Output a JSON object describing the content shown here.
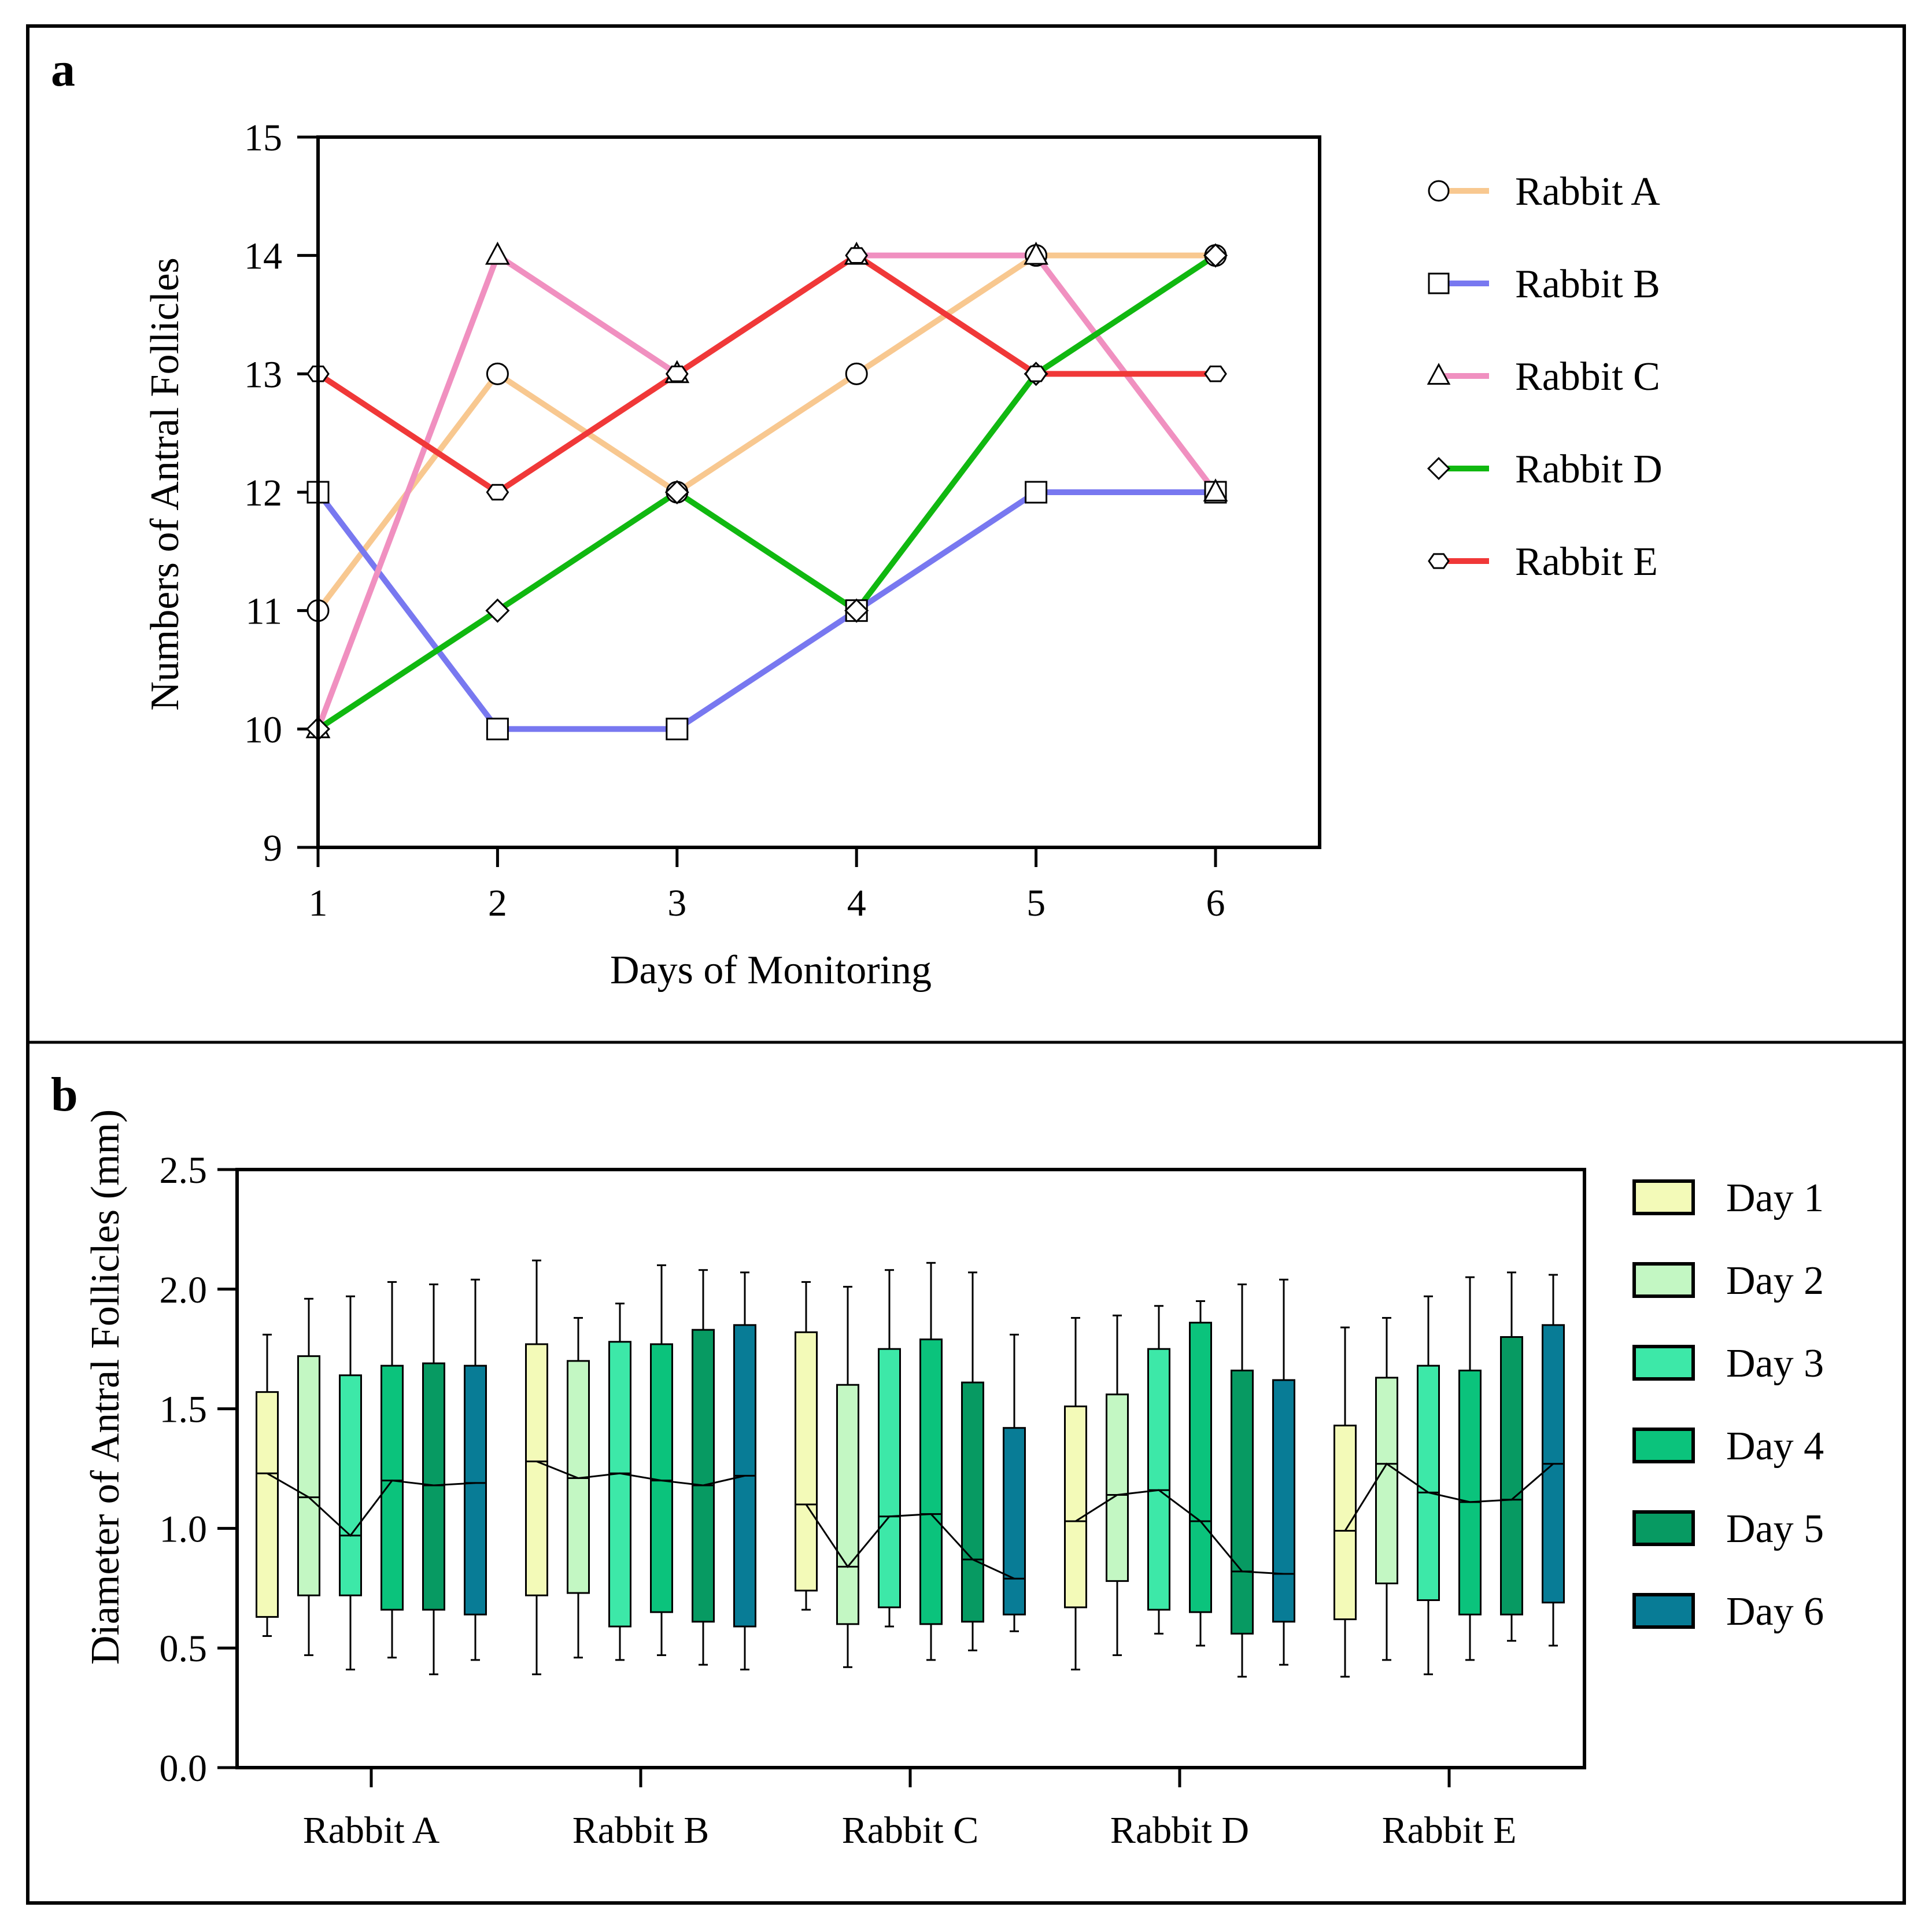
{
  "chart_data": [
    {
      "panel_label": "a",
      "type": "line",
      "title": "",
      "xlabel": "Days of Monitoring",
      "ylabel": "Numbers of Antral  Follicles",
      "x": [
        1,
        2,
        3,
        4,
        5,
        6
      ],
      "xlim": [
        1,
        6
      ],
      "ylim": [
        9,
        15
      ],
      "yticks": [
        9,
        10,
        11,
        12,
        13,
        14,
        15
      ],
      "grid": false,
      "legend_position": "right",
      "series": [
        {
          "name": "Rabbit A",
          "marker": "circle",
          "color": "#F8C890",
          "values": [
            11,
            13,
            12,
            13,
            14,
            14
          ]
        },
        {
          "name": "Rabbit B",
          "marker": "square",
          "color": "#7878F0",
          "values": [
            12,
            10,
            10,
            11,
            12,
            12
          ]
        },
        {
          "name": "Rabbit C",
          "marker": "triangle",
          "color": "#F090C0",
          "values": [
            10,
            14,
            13,
            14,
            14,
            12
          ]
        },
        {
          "name": "Rabbit D",
          "marker": "diamond",
          "color": "#10B810",
          "values": [
            10,
            11,
            12,
            11,
            13,
            14
          ]
        },
        {
          "name": "Rabbit E",
          "marker": "hexagon",
          "color": "#F03838",
          "values": [
            13,
            12,
            13,
            14,
            13,
            13
          ]
        }
      ]
    },
    {
      "panel_label": "b",
      "type": "box",
      "title": "",
      "xlabel": "",
      "ylabel": "Diameter of  Antral Follicles (mm)",
      "categories": [
        "Rabbit A",
        "Rabbit B",
        "Rabbit C",
        "Rabbit D",
        "Rabbit E"
      ],
      "ylim": [
        0,
        2.5
      ],
      "yticks": [
        "0.0",
        "0.5",
        "1.0",
        "1.5",
        "2.0",
        "2.5"
      ],
      "grid": false,
      "legend_position": "right",
      "series": [
        {
          "name": "Day 1",
          "color": "#F3FAB8",
          "boxes": [
            {
              "min": 0.55,
              "q1": 0.63,
              "median": 1.23,
              "q3": 1.57,
              "max": 1.81
            },
            {
              "min": 0.39,
              "q1": 0.72,
              "median": 1.28,
              "q3": 1.77,
              "max": 2.12
            },
            {
              "min": 0.66,
              "q1": 0.74,
              "median": 1.1,
              "q3": 1.82,
              "max": 2.03
            },
            {
              "min": 0.41,
              "q1": 0.67,
              "median": 1.03,
              "q3": 1.51,
              "max": 1.88
            },
            {
              "min": 0.38,
              "q1": 0.62,
              "median": 0.99,
              "q3": 1.43,
              "max": 1.84
            }
          ]
        },
        {
          "name": "Day 2",
          "color": "#C3F7C3",
          "boxes": [
            {
              "min": 0.47,
              "q1": 0.72,
              "median": 1.13,
              "q3": 1.72,
              "max": 1.96
            },
            {
              "min": 0.46,
              "q1": 0.73,
              "median": 1.21,
              "q3": 1.7,
              "max": 1.88
            },
            {
              "min": 0.42,
              "q1": 0.6,
              "median": 0.84,
              "q3": 1.6,
              "max": 2.01
            },
            {
              "min": 0.47,
              "q1": 0.78,
              "median": 1.14,
              "q3": 1.56,
              "max": 1.89
            },
            {
              "min": 0.45,
              "q1": 0.77,
              "median": 1.27,
              "q3": 1.63,
              "max": 1.88
            }
          ]
        },
        {
          "name": "Day 3",
          "color": "#3DE8A8",
          "boxes": [
            {
              "min": 0.41,
              "q1": 0.72,
              "median": 0.97,
              "q3": 1.64,
              "max": 1.97
            },
            {
              "min": 0.45,
              "q1": 0.59,
              "median": 1.23,
              "q3": 1.78,
              "max": 1.94
            },
            {
              "min": 0.59,
              "q1": 0.67,
              "median": 1.05,
              "q3": 1.75,
              "max": 2.08
            },
            {
              "min": 0.56,
              "q1": 0.66,
              "median": 1.16,
              "q3": 1.75,
              "max": 1.93
            },
            {
              "min": 0.39,
              "q1": 0.7,
              "median": 1.15,
              "q3": 1.68,
              "max": 1.97
            }
          ]
        },
        {
          "name": "Day 4",
          "color": "#0BC37C",
          "boxes": [
            {
              "min": 0.46,
              "q1": 0.66,
              "median": 1.2,
              "q3": 1.68,
              "max": 2.03
            },
            {
              "min": 0.47,
              "q1": 0.65,
              "median": 1.2,
              "q3": 1.77,
              "max": 2.1
            },
            {
              "min": 0.45,
              "q1": 0.6,
              "median": 1.06,
              "q3": 1.79,
              "max": 2.11
            },
            {
              "min": 0.51,
              "q1": 0.65,
              "median": 1.03,
              "q3": 1.86,
              "max": 1.95
            },
            {
              "min": 0.45,
              "q1": 0.64,
              "median": 1.11,
              "q3": 1.66,
              "max": 2.05
            }
          ]
        },
        {
          "name": "Day 5",
          "color": "#079A62",
          "boxes": [
            {
              "min": 0.39,
              "q1": 0.66,
              "median": 1.18,
              "q3": 1.69,
              "max": 2.02
            },
            {
              "min": 0.43,
              "q1": 0.61,
              "median": 1.18,
              "q3": 1.83,
              "max": 2.08
            },
            {
              "min": 0.49,
              "q1": 0.61,
              "median": 0.87,
              "q3": 1.61,
              "max": 2.07
            },
            {
              "min": 0.38,
              "q1": 0.56,
              "median": 0.82,
              "q3": 1.66,
              "max": 2.02
            },
            {
              "min": 0.53,
              "q1": 0.64,
              "median": 1.12,
              "q3": 1.8,
              "max": 2.07
            }
          ]
        },
        {
          "name": "Day 6",
          "color": "#087C96",
          "boxes": [
            {
              "min": 0.45,
              "q1": 0.64,
              "median": 1.19,
              "q3": 1.68,
              "max": 2.04
            },
            {
              "min": 0.41,
              "q1": 0.59,
              "median": 1.22,
              "q3": 1.85,
              "max": 2.07
            },
            {
              "min": 0.57,
              "q1": 0.64,
              "median": 0.79,
              "q3": 1.42,
              "max": 1.81
            },
            {
              "min": 0.43,
              "q1": 0.61,
              "median": 0.81,
              "q3": 1.62,
              "max": 2.04
            },
            {
              "min": 0.51,
              "q1": 0.69,
              "median": 1.27,
              "q3": 1.85,
              "max": 2.06
            }
          ]
        }
      ]
    }
  ]
}
